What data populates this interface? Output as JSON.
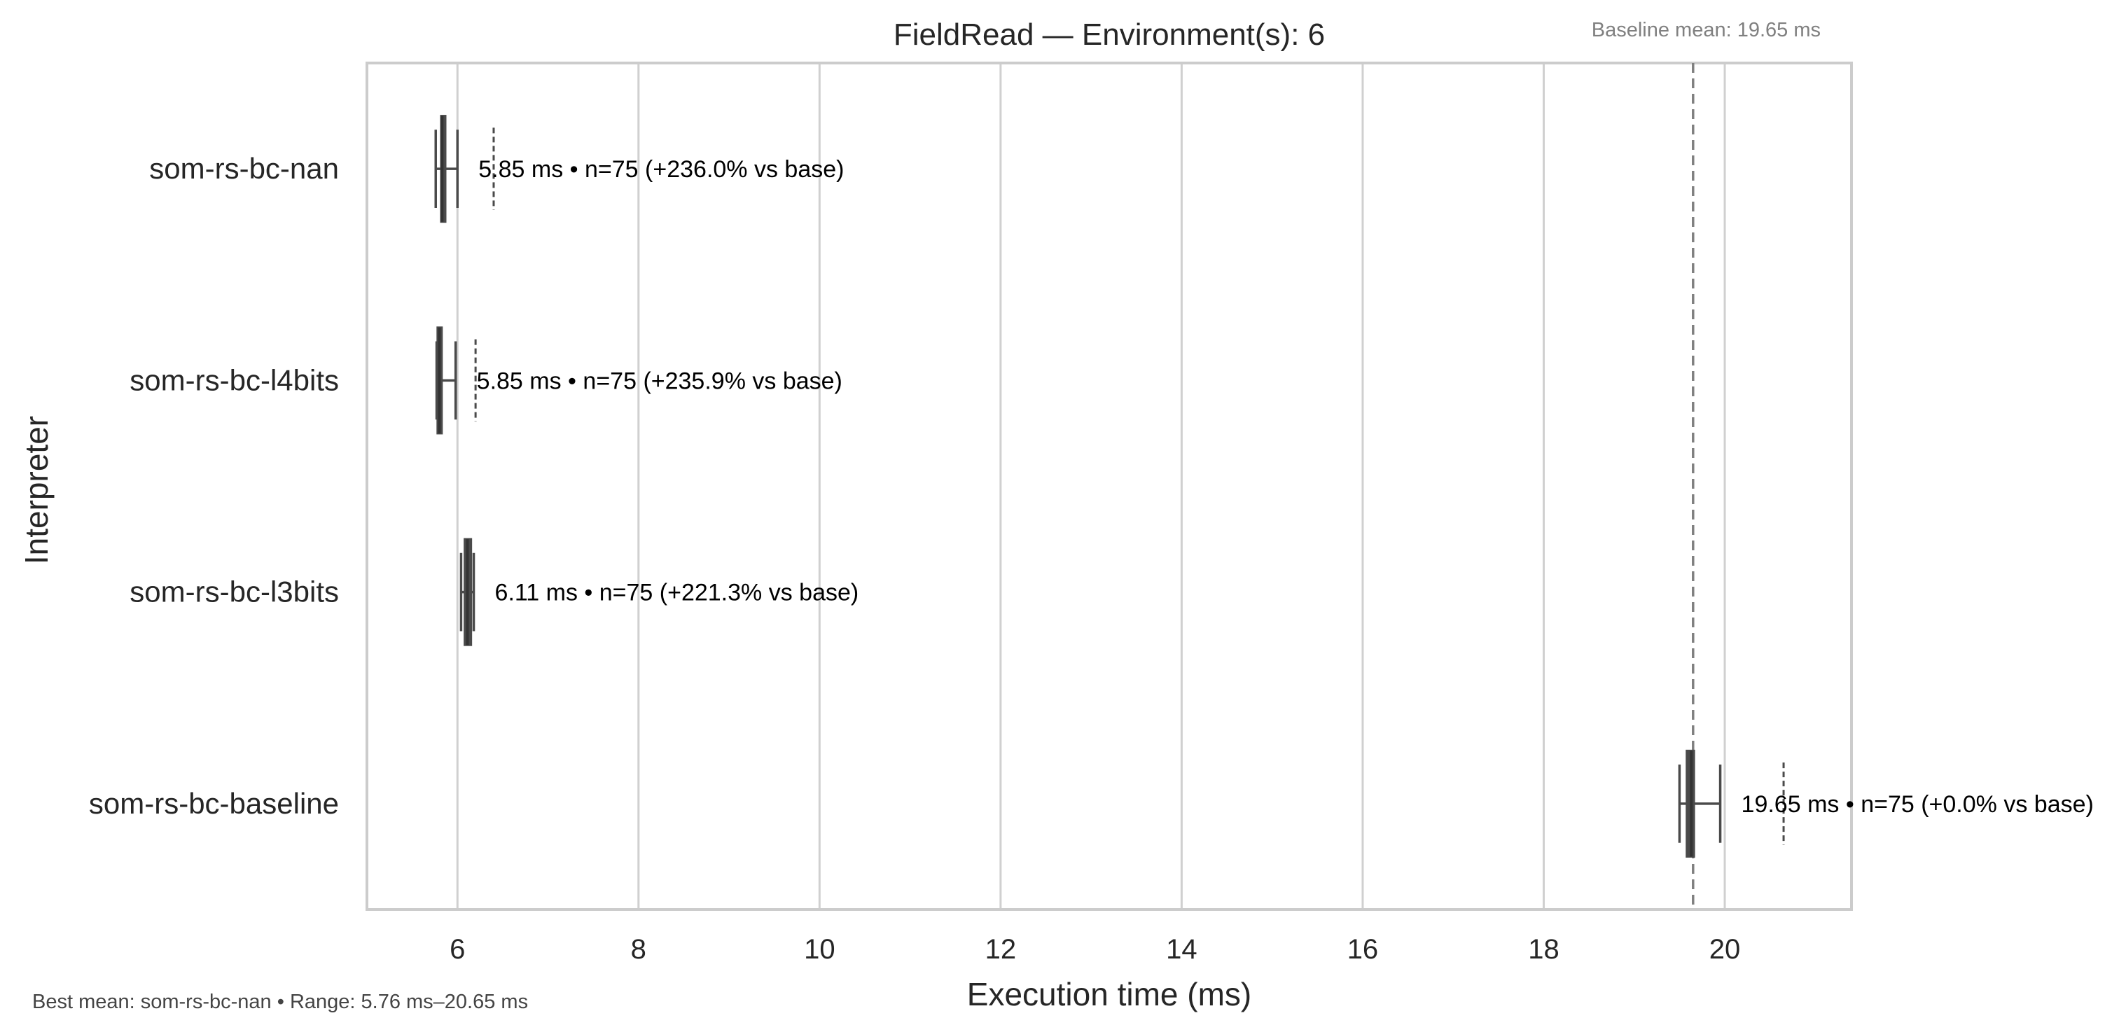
{
  "chart_data": {
    "type": "box",
    "title": "FieldRead — Environment(s): 6",
    "xlabel": "Execution time (ms)",
    "ylabel": "Interpreter",
    "xlim": [
      5.0,
      21.4
    ],
    "xticks": [
      6,
      8,
      10,
      12,
      14,
      16,
      18,
      20
    ],
    "grid": "vertical",
    "categories": [
      "som-rs-bc-nan",
      "som-rs-bc-l4bits",
      "som-rs-bc-l3bits",
      "som-rs-bc-baseline"
    ],
    "series": [
      {
        "category": "som-rs-bc-nan",
        "whisker_low": 5.76,
        "q1": 5.82,
        "median": 5.83,
        "q3": 5.85,
        "whisker_high": 6.0,
        "outliers": [
          6.4
        ],
        "mean": 5.85,
        "n": 75,
        "annotation": "5.85 ms • n=75 (+236.0% vs base)"
      },
      {
        "category": "som-rs-bc-l4bits",
        "whisker_low": 5.77,
        "q1": 5.78,
        "median": 5.8,
        "q3": 5.82,
        "whisker_high": 5.98,
        "outliers": [
          6.2
        ],
        "mean": 5.85,
        "n": 75,
        "annotation": "5.85 ms • n=75 (+235.9% vs base)"
      },
      {
        "category": "som-rs-bc-l3bits",
        "whisker_low": 6.04,
        "q1": 6.08,
        "median": 6.11,
        "q3": 6.15,
        "whisker_high": 6.18,
        "outliers": [],
        "mean": 6.11,
        "n": 75,
        "annotation": "6.11 ms • n=75 (+221.3% vs base)"
      },
      {
        "category": "som-rs-bc-baseline",
        "whisker_low": 19.5,
        "q1": 19.58,
        "median": 19.63,
        "q3": 19.66,
        "whisker_high": 19.95,
        "outliers": [
          20.65
        ],
        "mean": 19.65,
        "n": 75,
        "annotation": "19.65 ms • n=75 (+0.0% vs base)"
      }
    ],
    "baseline_mean": 19.65,
    "baseline_note": "Baseline mean: 19.65 ms",
    "footer": "Best mean: som-rs-bc-nan • Range: 5.76 ms–20.65 ms",
    "colors": {
      "grid": "#d0d0d0",
      "frame": "#cccccc",
      "box": "#4a4a4a",
      "baseline_line": "#808080"
    }
  }
}
